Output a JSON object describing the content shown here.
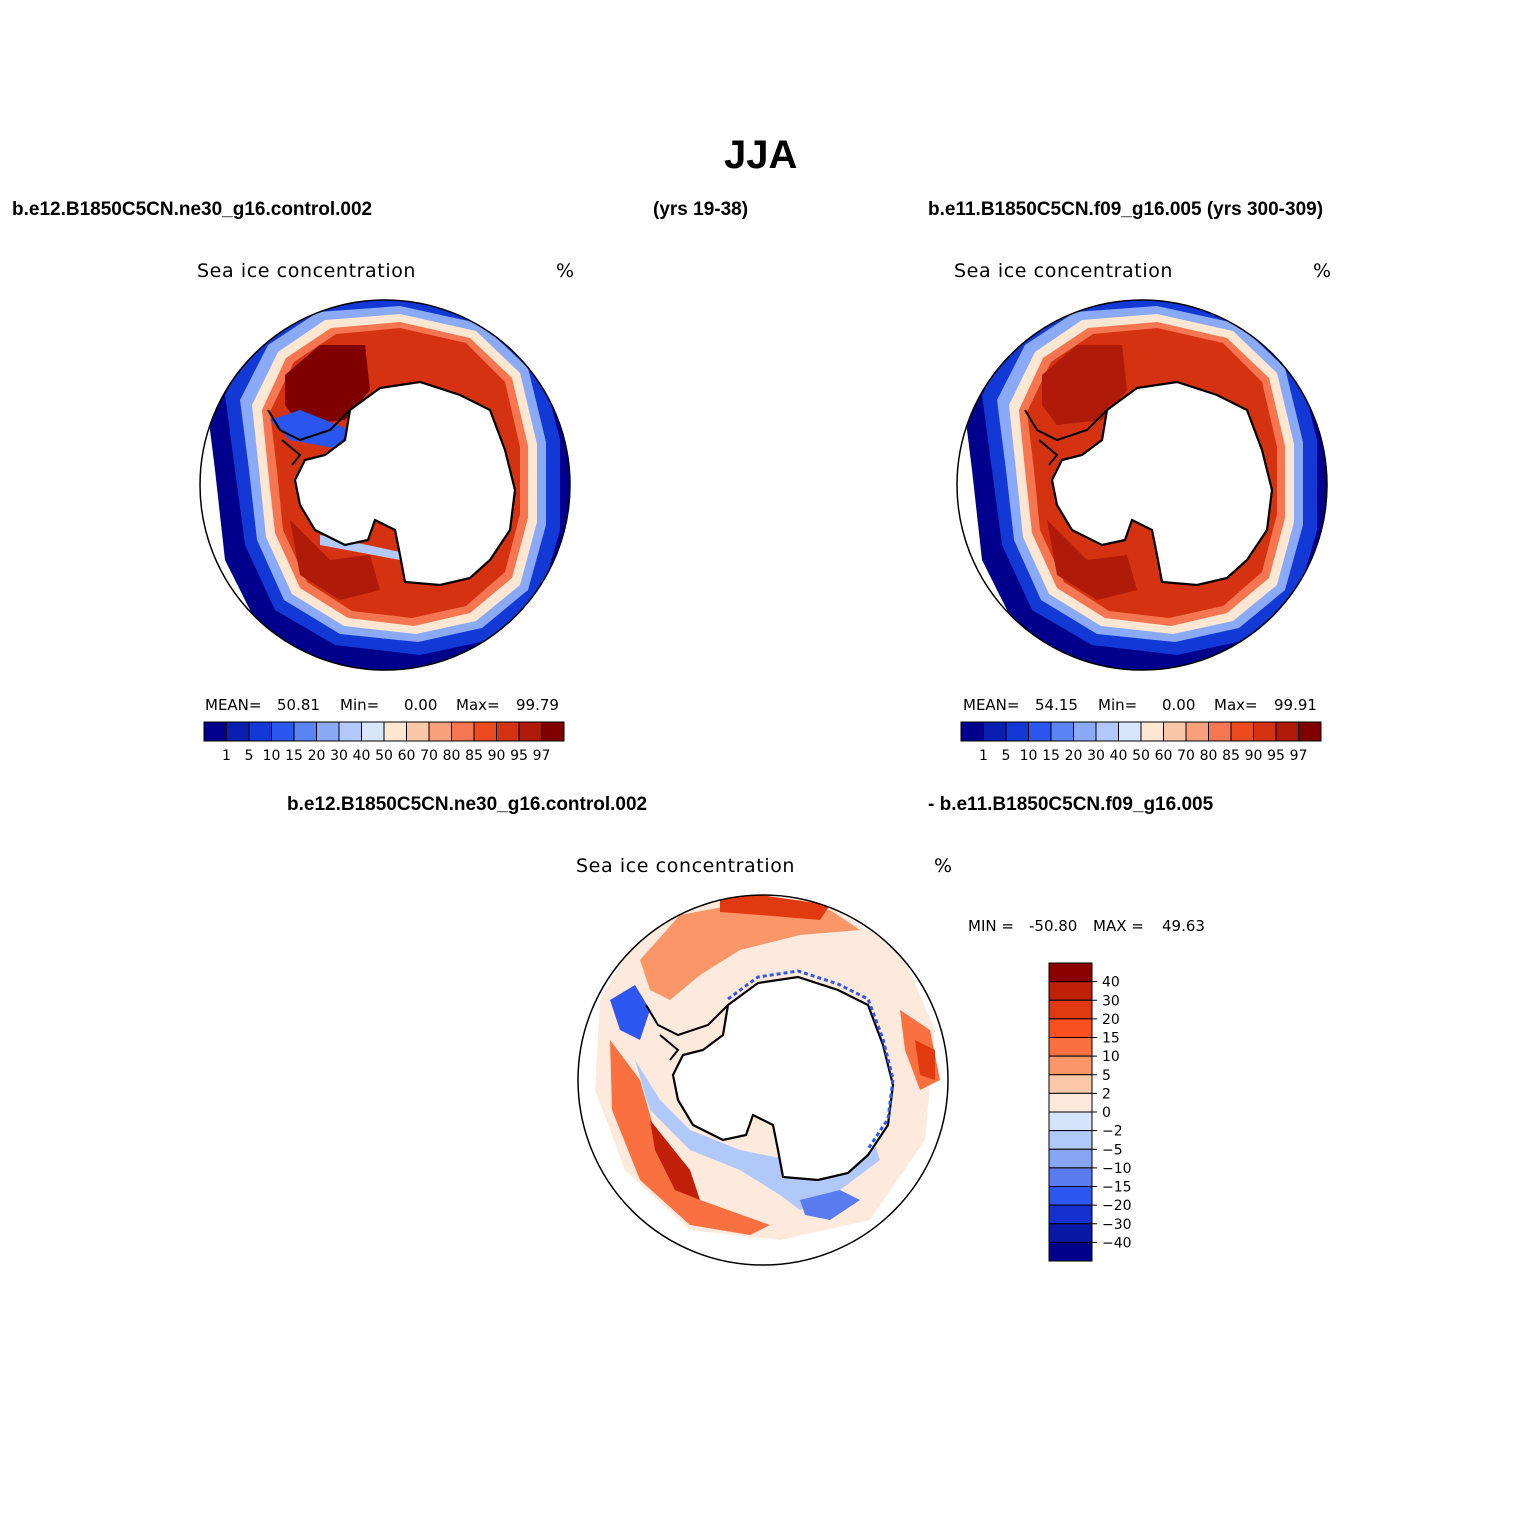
{
  "page": {
    "title": "JJA",
    "case1_title": "b.e12.B1850C5CN.ne30_g16.control.002",
    "case1_years": "(yrs 19-38)",
    "case2_title": "b.e11.B1850C5CN.f09_g16.005 (yrs 300-309)",
    "diff_title_left": "b.e12.B1850C5CN.ne30_g16.control.002",
    "diff_title_right": "- b.e11.B1850C5CN.f09_g16.005"
  },
  "panels": [
    {
      "id": "case1",
      "variable": "Sea ice concentration",
      "units": "%",
      "stats": {
        "mean_label": "MEAN=",
        "mean": "50.81",
        "min_label": "Min=",
        "min": "0.00",
        "max_label": "Max=",
        "max": "99.79"
      }
    },
    {
      "id": "case2",
      "variable": "Sea ice concentration",
      "units": "%",
      "stats": {
        "mean_label": "MEAN=",
        "mean": "54.15",
        "min_label": "Min=",
        "min": "0.00",
        "max_label": "Max=",
        "max": "99.91"
      }
    },
    {
      "id": "diff",
      "variable": "Sea ice concentration",
      "units": "%",
      "stats": {
        "min_label": "MIN =",
        "min": "-50.80",
        "max_label": "MAX =",
        "max": "49.63"
      }
    }
  ],
  "colorbars": {
    "concentration": {
      "levels": [
        "1",
        "5",
        "10",
        "15",
        "20",
        "30",
        "40",
        "50",
        "60",
        "70",
        "80",
        "85",
        "90",
        "95",
        "97"
      ],
      "colors": [
        "#00008c",
        "#0a1fb0",
        "#1238d6",
        "#2a55ee",
        "#5a83f5",
        "#8aaaf8",
        "#b2c8fa",
        "#d8e6fb",
        "#fde6d2",
        "#fbc7a9",
        "#f8a07c",
        "#f57650",
        "#ee4a20",
        "#d43210",
        "#b01a08",
        "#800000"
      ]
    },
    "difference": {
      "levels": [
        "40",
        "30",
        "20",
        "15",
        "10",
        "5",
        "2",
        "0",
        "-2",
        "-5",
        "-10",
        "-15",
        "-20",
        "-30",
        "-40"
      ],
      "colors": [
        "#8c0000",
        "#c02008",
        "#e23a10",
        "#fa5020",
        "#fa7040",
        "#fa9668",
        "#fcc8a8",
        "#fdeadc",
        "#d4e4fa",
        "#b0c8fa",
        "#88a4f5",
        "#5a7cf0",
        "#2e56f0",
        "#1630d0",
        "#0a18a8",
        "#00008c"
      ]
    }
  }
}
